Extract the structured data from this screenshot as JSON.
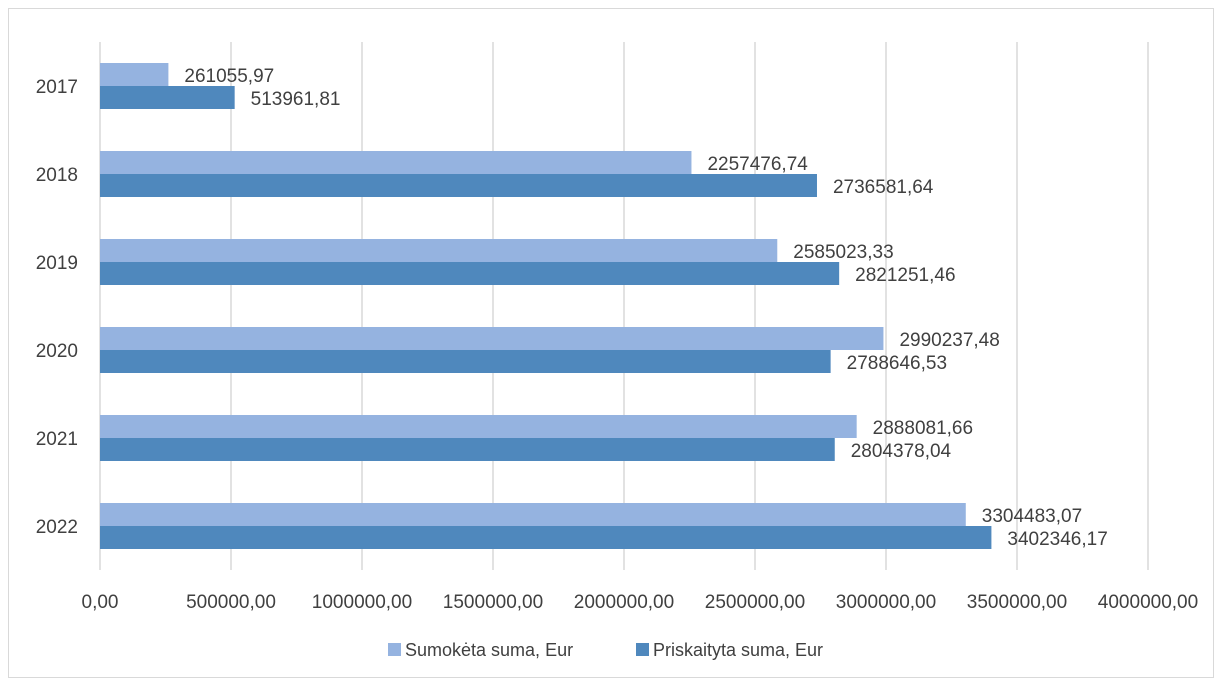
{
  "chart_data": {
    "type": "bar",
    "orientation": "horizontal",
    "categories": [
      "2017",
      "2018",
      "2019",
      "2020",
      "2021",
      "2022"
    ],
    "series": [
      {
        "name": "Sumokėta suma, Eur",
        "color": "#95b3e0",
        "values": [
          261055.97,
          2257476.74,
          2585023.33,
          2990237.48,
          2888081.66,
          3304483.07
        ],
        "labels": [
          "261055,97",
          "2257476,74",
          "2585023,33",
          "2990237,48",
          "2888081,66",
          "3304483,07"
        ]
      },
      {
        "name": "Priskaityta suma, Eur",
        "color": "#4f88bd",
        "values": [
          513961.81,
          2736581.64,
          2821251.46,
          2788646.53,
          2804378.04,
          3402346.17
        ],
        "labels": [
          "513961,81",
          "2736581,64",
          "2821251,46",
          "2788646,53",
          "2804378,04",
          "3402346,17"
        ]
      }
    ],
    "xlim": [
      0,
      4000000
    ],
    "x_ticks": [
      0,
      500000,
      1000000,
      1500000,
      2000000,
      2500000,
      3000000,
      3500000,
      4000000
    ],
    "x_tick_labels": [
      "0,00",
      "500000,00",
      "1000000,00",
      "1500000,00",
      "2000000,00",
      "2500000,00",
      "3000000,00",
      "3500000,00",
      "4000000,00"
    ],
    "title": "",
    "xlabel": "",
    "ylabel": "",
    "grid": "vertical",
    "legend_position": "bottom"
  }
}
